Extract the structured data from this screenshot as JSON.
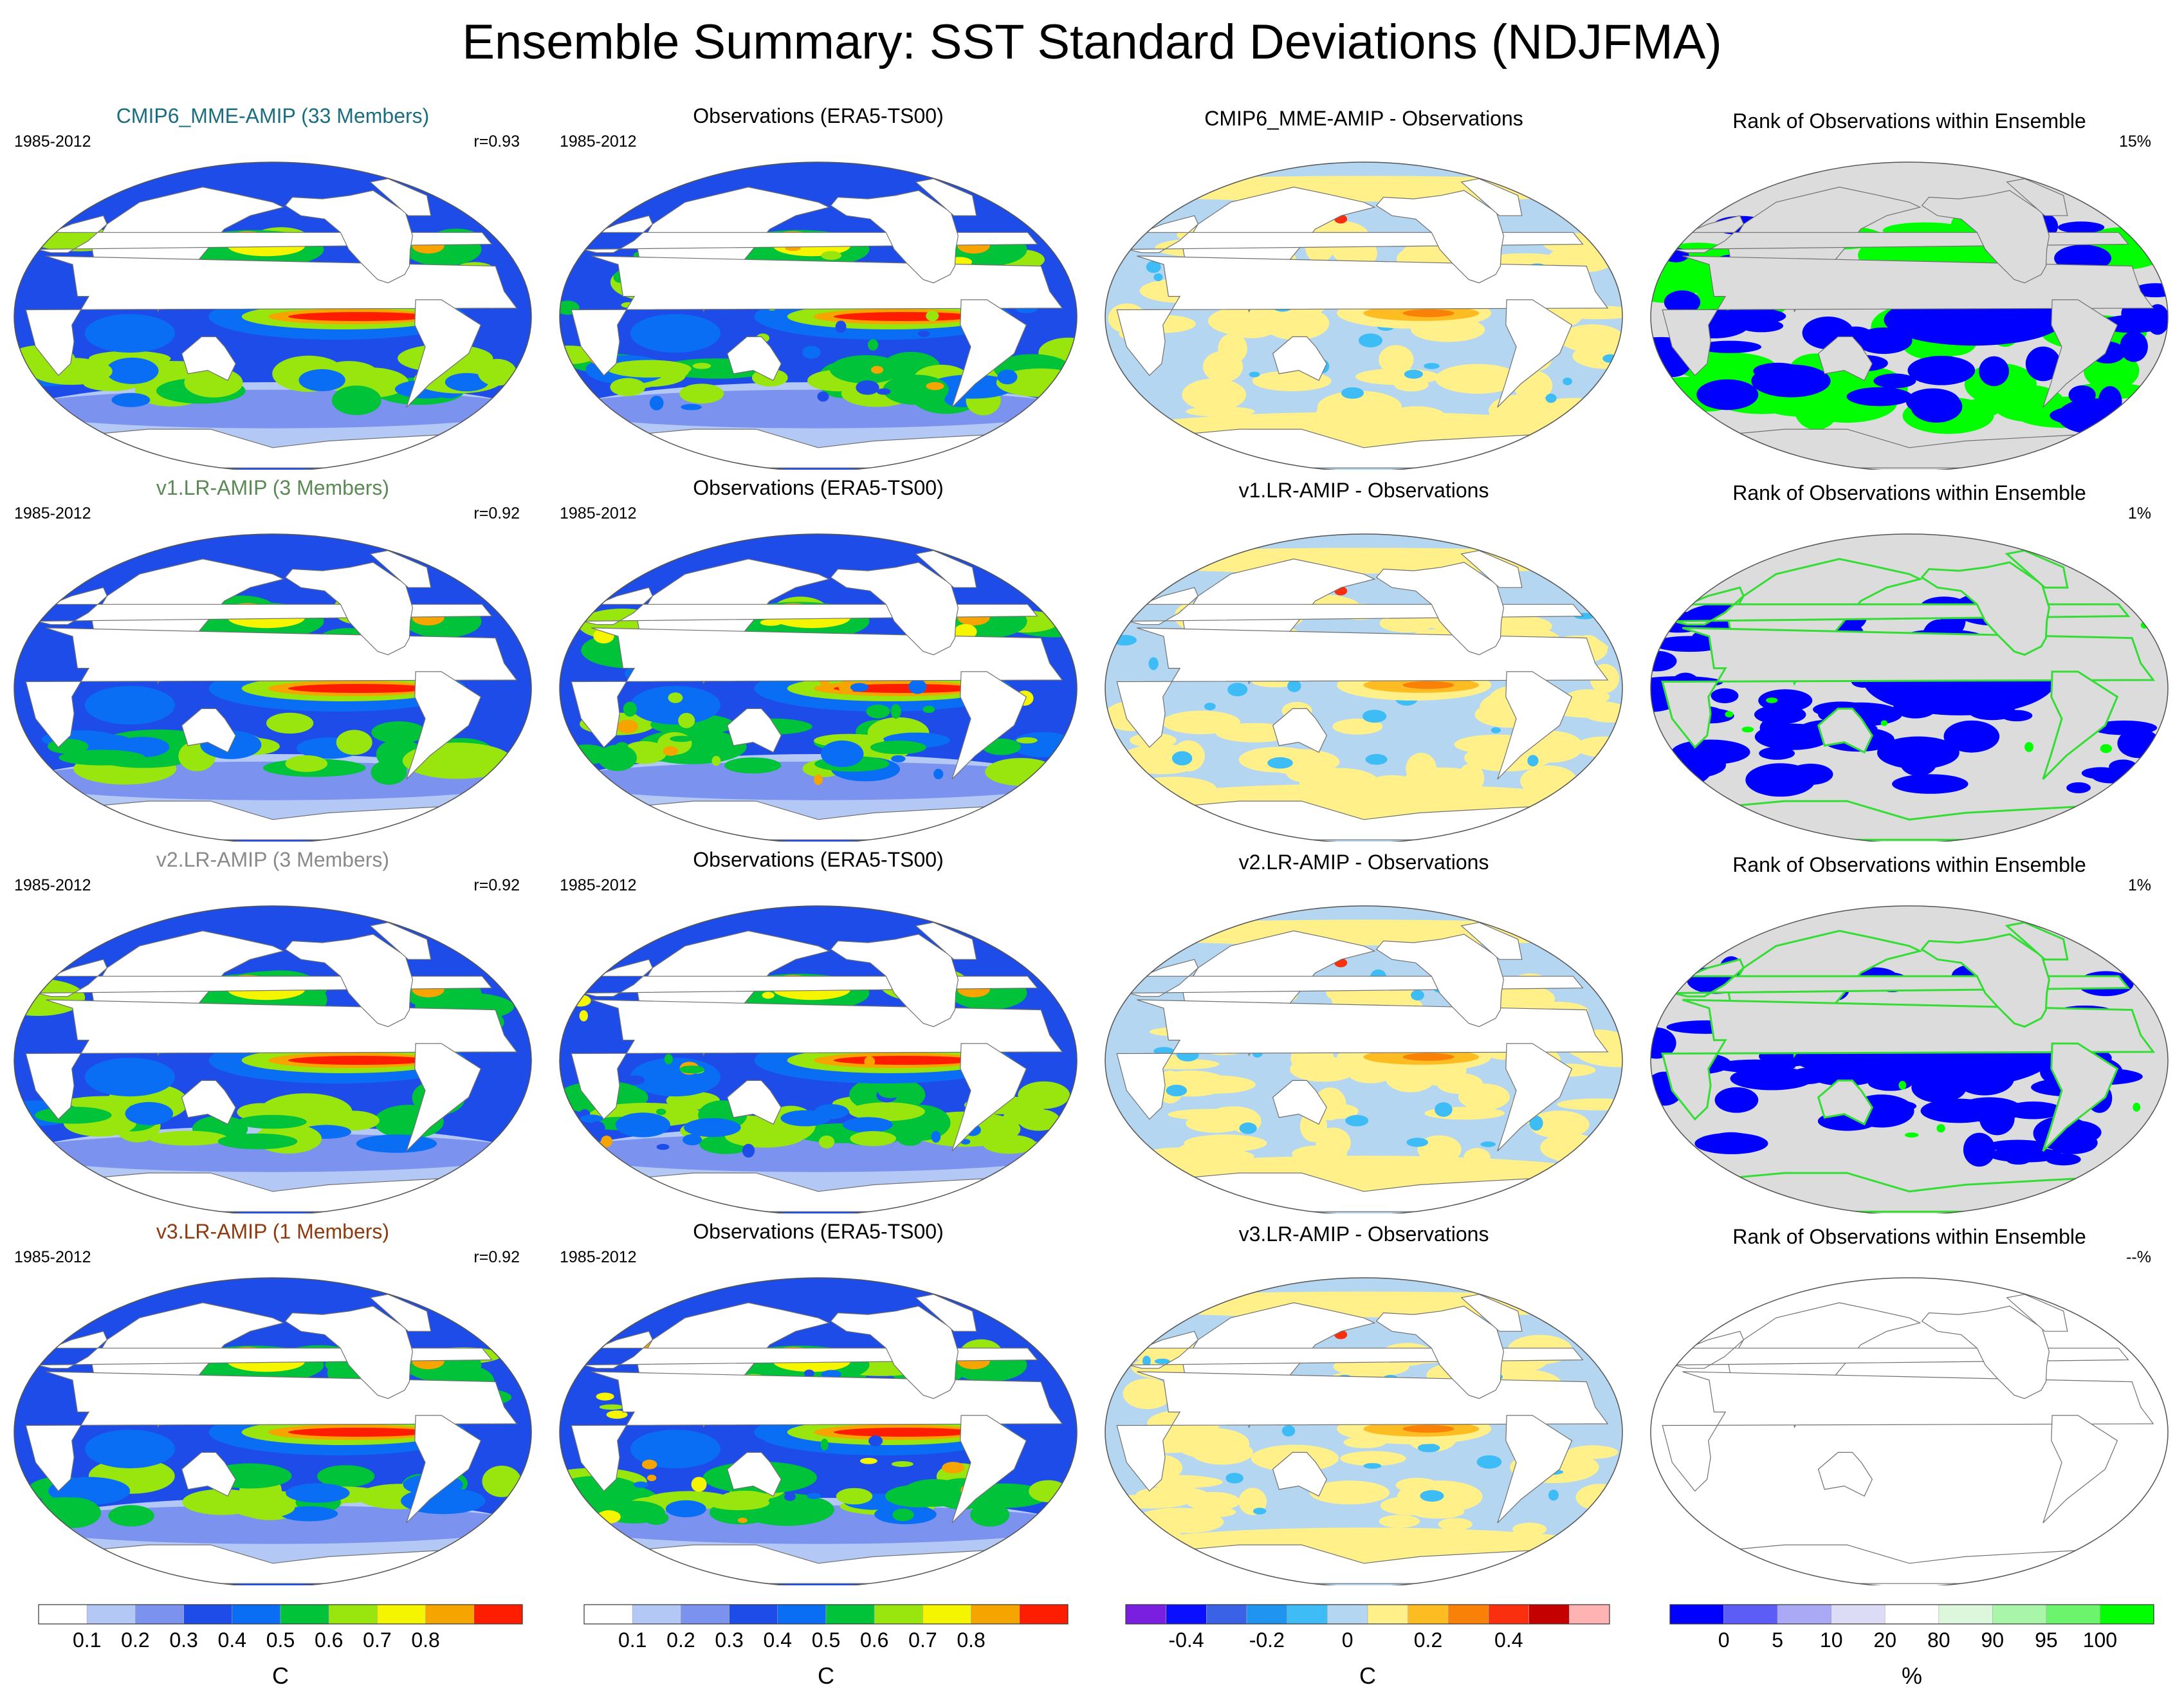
{
  "title": "Ensemble Summary: SST Standard Deviations (NDJFMA)",
  "colors": {
    "sd": [
      "#ffffff",
      "#b4c8f5",
      "#7b93ee",
      "#1d4ce8",
      "#0a6ef5",
      "#00c33a",
      "#99e60e",
      "#f5f500",
      "#f5a400",
      "#ff1d00"
    ],
    "diff": [
      "#7a1fe0",
      "#0a10ff",
      "#3a62e6",
      "#1f94f0",
      "#3ebcf5",
      "#b4d6f0",
      "#fff08a",
      "#fcbc22",
      "#fa8108",
      "#fa2f0e",
      "#c40000",
      "#ffb3b3"
    ],
    "rank": [
      "#0000ff",
      "#5c5cf7",
      "#a9a9f5",
      "#dcdcf7",
      "#ffffff",
      "#dcf7dc",
      "#a9f5a9",
      "#6cf56c",
      "#00ff00"
    ],
    "land": "#ffffff",
    "rank_bg": "#dcdcdc",
    "cmip6_title": "#1b6e80",
    "v1_title": "#5a8a54",
    "v2_title": "#8a8a8a",
    "v3_title": "#8c3a0e"
  },
  "rows": [
    {
      "model_title": "CMIP6_MME-AMIP (33 Members)",
      "model_title_color": "#1b6e80",
      "years": "1985-2012",
      "r": "r=0.93",
      "obs_title": "Observations (ERA5-TS00)",
      "diff_title": "CMIP6_MME-AMIP - Observations",
      "rank_title": "Rank of Observations within Ensemble",
      "rank_pct": "15%",
      "rank_mode": "mme"
    },
    {
      "model_title": "v1.LR-AMIP (3 Members)",
      "model_title_color": "#5a8a54",
      "years": "1985-2012",
      "r": "r=0.92",
      "obs_title": "Observations (ERA5-TS00)",
      "diff_title": "v1.LR-AMIP - Observations",
      "rank_title": "Rank of Observations within Ensemble",
      "rank_pct": "1%",
      "rank_mode": "few"
    },
    {
      "model_title": "v2.LR-AMIP (3 Members)",
      "model_title_color": "#8a8a8a",
      "years": "1985-2012",
      "r": "r=0.92",
      "obs_title": "Observations (ERA5-TS00)",
      "diff_title": "v2.LR-AMIP - Observations",
      "rank_title": "Rank of Observations within Ensemble",
      "rank_pct": "1%",
      "rank_mode": "few"
    },
    {
      "model_title": "v3.LR-AMIP (1 Members)",
      "model_title_color": "#8c3a0e",
      "years": "1985-2012",
      "r": "r=0.92",
      "obs_title": "Observations (ERA5-TS00)",
      "diff_title": "v3.LR-AMIP - Observations",
      "rank_title": "Rank of Observations within Ensemble",
      "rank_pct": "--%",
      "rank_mode": "none"
    }
  ],
  "colorbars": {
    "sd": {
      "labels": [
        "0.1",
        "0.2",
        "0.3",
        "0.4",
        "0.5",
        "0.6",
        "0.7",
        "0.8"
      ],
      "unit": "C"
    },
    "diff": {
      "labels": [
        "-0.4",
        "-0.2",
        "0",
        "0.2",
        "0.4"
      ],
      "unit": "C"
    },
    "rank": {
      "labels": [
        "0",
        "5",
        "10",
        "20",
        "80",
        "90",
        "95",
        "100"
      ],
      "unit": "%"
    }
  },
  "chart_data": [
    {
      "type": "heatmap",
      "title": "Ensemble Summary: SST Standard Deviations (NDJFMA)",
      "description_of_panels": "4 rows x 4 columns of global maps: model SST standard deviation, observed SST standard deviation, model minus observations, and rank of observations within the ensemble",
      "sd_levels": [
        0.1,
        0.2,
        0.3,
        0.4,
        0.5,
        0.6,
        0.7,
        0.8
      ],
      "sd_unit": "C",
      "diff_levels": [
        -0.5,
        -0.4,
        -0.3,
        -0.2,
        -0.1,
        0,
        0.1,
        0.2,
        0.3,
        0.4,
        0.5
      ],
      "diff_tick_labels": [
        -0.4,
        -0.2,
        0,
        0.2,
        0.4
      ],
      "diff_unit": "C",
      "rank_levels": [
        0,
        5,
        10,
        20,
        80,
        90,
        95,
        100
      ],
      "rank_unit": "%",
      "pattern_correlations": [
        0.93,
        0.92,
        0.92,
        0.92
      ],
      "rank_outside_percent": [
        "15%",
        "1%",
        "1%",
        "--%"
      ],
      "period": "1985-2012"
    }
  ]
}
